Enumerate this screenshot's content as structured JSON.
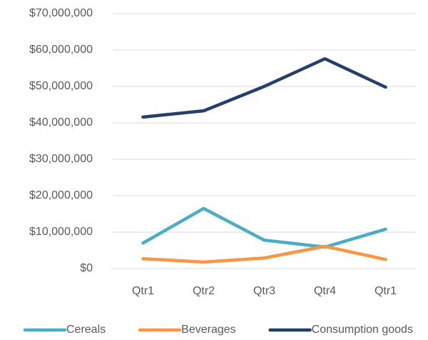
{
  "chart_data": {
    "type": "line",
    "categories": [
      "Qtr1",
      "Qtr2",
      "Qtr3",
      "Qtr4",
      "Qtr1"
    ],
    "series": [
      {
        "name": "Cereals",
        "color": "#4bacc6",
        "values": [
          7000000,
          16500000,
          7800000,
          5900000,
          10800000
        ]
      },
      {
        "name": "Beverages",
        "color": "#f79646",
        "values": [
          2700000,
          1800000,
          2900000,
          6100000,
          2500000
        ]
      },
      {
        "name": "Consumption goods",
        "color": "#243f6b",
        "values": [
          41600000,
          43300000,
          50000000,
          57600000,
          49800000
        ]
      }
    ],
    "ylim": [
      0,
      70000000
    ],
    "yticks": [
      {
        "value": 0,
        "label": "$0"
      },
      {
        "value": 10000000,
        "label": "$10,000,000"
      },
      {
        "value": 20000000,
        "label": "$20,000,000"
      },
      {
        "value": 30000000,
        "label": "$30,000,000"
      },
      {
        "value": 40000000,
        "label": "$40,000,000"
      },
      {
        "value": 50000000,
        "label": "$50,000,000"
      },
      {
        "value": 60000000,
        "label": "$60,000,000"
      },
      {
        "value": 70000000,
        "label": "$70,000,000"
      }
    ],
    "grid": true,
    "legend": "bottom"
  }
}
